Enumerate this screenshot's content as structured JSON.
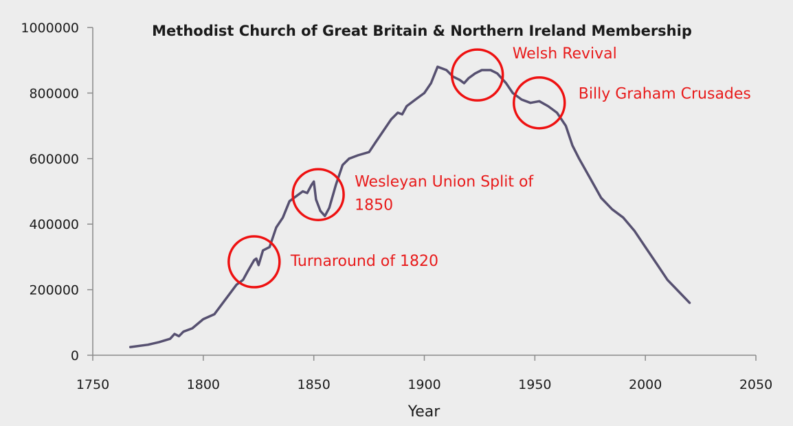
{
  "chart_data": {
    "type": "line",
    "title": "Methodist Church of Great Britain & Northern Ireland Membership",
    "xlabel": "Year",
    "ylabel": "",
    "xlim": [
      1750,
      2050
    ],
    "ylim": [
      0,
      1000000
    ],
    "x_ticks": [
      1750,
      1800,
      1850,
      1900,
      1950,
      2000,
      2050
    ],
    "y_ticks": [
      0,
      200000,
      400000,
      600000,
      800000,
      1000000
    ],
    "grid": false,
    "legend": "none",
    "series": [
      {
        "color": "#565070",
        "points": [
          [
            1767,
            25000
          ],
          [
            1775,
            32000
          ],
          [
            1780,
            40000
          ],
          [
            1785,
            50000
          ],
          [
            1787,
            65000
          ],
          [
            1789,
            58000
          ],
          [
            1791,
            72000
          ],
          [
            1795,
            82000
          ],
          [
            1800,
            110000
          ],
          [
            1805,
            125000
          ],
          [
            1810,
            170000
          ],
          [
            1815,
            215000
          ],
          [
            1818,
            230000
          ],
          [
            1820,
            255000
          ],
          [
            1823,
            290000
          ],
          [
            1824,
            295000
          ],
          [
            1825,
            275000
          ],
          [
            1827,
            320000
          ],
          [
            1830,
            330000
          ],
          [
            1833,
            390000
          ],
          [
            1836,
            420000
          ],
          [
            1839,
            470000
          ],
          [
            1842,
            485000
          ],
          [
            1845,
            500000
          ],
          [
            1847,
            495000
          ],
          [
            1849,
            520000
          ],
          [
            1850,
            530000
          ],
          [
            1851,
            475000
          ],
          [
            1853,
            440000
          ],
          [
            1855,
            425000
          ],
          [
            1857,
            450000
          ],
          [
            1860,
            520000
          ],
          [
            1863,
            580000
          ],
          [
            1866,
            600000
          ],
          [
            1870,
            610000
          ],
          [
            1875,
            620000
          ],
          [
            1878,
            650000
          ],
          [
            1881,
            680000
          ],
          [
            1885,
            720000
          ],
          [
            1888,
            740000
          ],
          [
            1890,
            735000
          ],
          [
            1892,
            760000
          ],
          [
            1896,
            780000
          ],
          [
            1900,
            800000
          ],
          [
            1903,
            830000
          ],
          [
            1906,
            880000
          ],
          [
            1910,
            870000
          ],
          [
            1913,
            850000
          ],
          [
            1916,
            840000
          ],
          [
            1918,
            830000
          ],
          [
            1920,
            845000
          ],
          [
            1923,
            860000
          ],
          [
            1926,
            870000
          ],
          [
            1930,
            870000
          ],
          [
            1933,
            860000
          ],
          [
            1937,
            830000
          ],
          [
            1940,
            800000
          ],
          [
            1944,
            780000
          ],
          [
            1948,
            770000
          ],
          [
            1952,
            775000
          ],
          [
            1956,
            760000
          ],
          [
            1960,
            740000
          ],
          [
            1964,
            700000
          ],
          [
            1967,
            640000
          ],
          [
            1970,
            600000
          ],
          [
            1975,
            540000
          ],
          [
            1980,
            480000
          ],
          [
            1985,
            445000
          ],
          [
            1990,
            420000
          ],
          [
            1995,
            380000
          ],
          [
            2000,
            330000
          ],
          [
            2005,
            280000
          ],
          [
            2010,
            230000
          ],
          [
            2015,
            195000
          ],
          [
            2020,
            160000
          ]
        ]
      }
    ],
    "annotations": [
      {
        "label": [
          "Turnaround of 1820"
        ],
        "x": 1823,
        "y": 285000
      },
      {
        "label": [
          "Wesleyan Union Split of",
          "1850"
        ],
        "x": 1852,
        "y": 490000
      },
      {
        "label": [
          "Welsh Revival"
        ],
        "x": 1924,
        "y": 855000
      },
      {
        "label": [
          "Billy Graham Crusades"
        ],
        "x": 1952,
        "y": 770000
      }
    ]
  }
}
